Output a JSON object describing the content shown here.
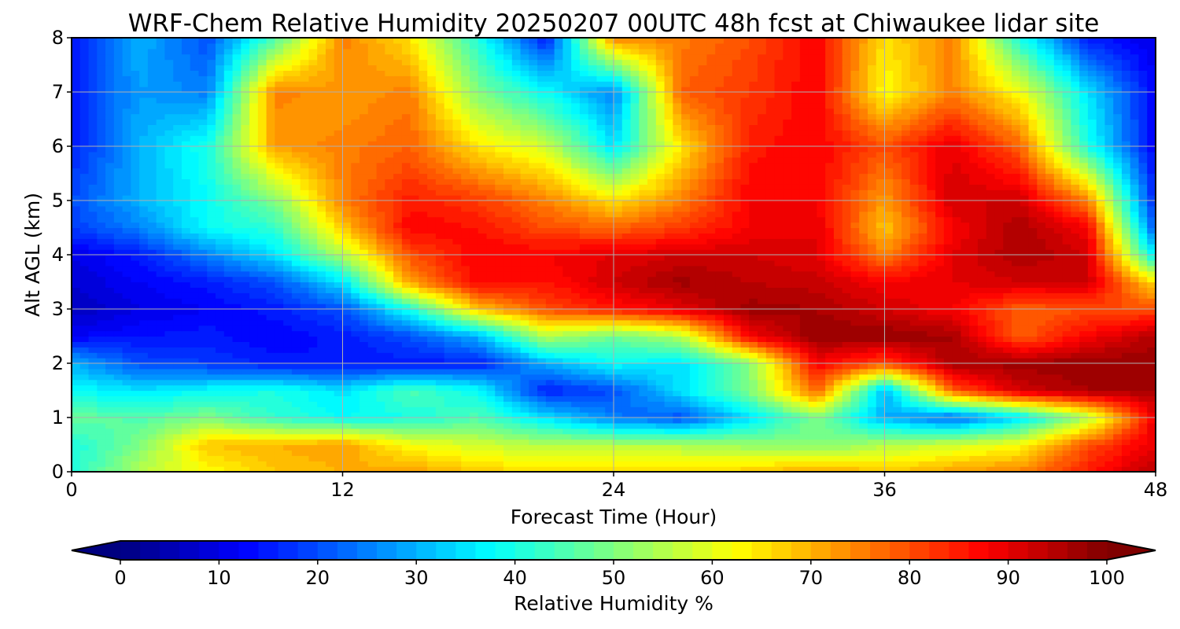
{
  "chart_data": {
    "type": "heatmap",
    "title": "WRF-Chem Relative Humidity 20250207 00UTC 48h fcst at Chiwaukee lidar site",
    "xlabel": "Forecast Time (Hour)",
    "ylabel": "Alt AGL (km)",
    "xlim": [
      0,
      48
    ],
    "ylim": [
      0,
      8
    ],
    "xticks": [
      "0",
      "12",
      "24",
      "36",
      "48"
    ],
    "yticks": [
      "0",
      "1",
      "2",
      "3",
      "4",
      "5",
      "6",
      "7",
      "8"
    ],
    "grid": true,
    "colormap": "jet",
    "colorbar": {
      "label": "Relative Humidity %",
      "range": [
        0,
        100
      ],
      "ticks": [
        "0",
        "10",
        "20",
        "30",
        "40",
        "50",
        "60",
        "70",
        "80",
        "90",
        "100"
      ],
      "extend": "both",
      "placement": "bottom"
    },
    "x": [
      0,
      3,
      6,
      9,
      12,
      15,
      18,
      21,
      24,
      27,
      30,
      33,
      36,
      39,
      42,
      45,
      48
    ],
    "y": [
      0,
      0.5,
      1,
      1.5,
      2,
      2.5,
      3,
      3.5,
      4,
      4.5,
      5,
      6,
      7,
      8
    ],
    "z": [
      [
        40,
        55,
        62,
        68,
        70,
        72,
        68,
        65,
        65,
        65,
        68,
        72,
        68,
        72,
        75,
        85,
        95
      ],
      [
        40,
        50,
        68,
        70,
        72,
        62,
        58,
        55,
        55,
        55,
        52,
        50,
        55,
        58,
        62,
        80,
        90
      ],
      [
        48,
        45,
        50,
        42,
        38,
        40,
        45,
        35,
        25,
        20,
        35,
        50,
        30,
        22,
        35,
        55,
        90
      ],
      [
        38,
        35,
        38,
        40,
        35,
        45,
        38,
        15,
        20,
        35,
        50,
        78,
        30,
        78,
        92,
        96,
        96
      ],
      [
        30,
        20,
        18,
        15,
        14,
        15,
        15,
        30,
        38,
        35,
        50,
        88,
        80,
        96,
        97,
        98,
        98
      ],
      [
        12,
        14,
        15,
        12,
        15,
        20,
        30,
        55,
        48,
        55,
        88,
        98,
        98,
        96,
        78,
        88,
        95
      ],
      [
        6,
        10,
        12,
        15,
        20,
        40,
        68,
        80,
        85,
        90,
        97,
        96,
        92,
        88,
        78,
        80,
        80
      ],
      [
        8,
        12,
        15,
        20,
        35,
        72,
        88,
        86,
        92,
        97,
        94,
        93,
        88,
        90,
        92,
        92,
        65
      ],
      [
        10,
        15,
        25,
        35,
        55,
        80,
        88,
        88,
        90,
        92,
        92,
        90,
        75,
        90,
        96,
        92,
        35
      ],
      [
        18,
        25,
        38,
        42,
        68,
        88,
        86,
        80,
        78,
        82,
        88,
        90,
        68,
        88,
        96,
        88,
        20
      ],
      [
        20,
        30,
        38,
        50,
        75,
        85,
        82,
        75,
        65,
        75,
        88,
        88,
        72,
        92,
        92,
        75,
        15
      ],
      [
        15,
        30,
        40,
        72,
        75,
        78,
        65,
        58,
        35,
        65,
        85,
        88,
        80,
        90,
        78,
        40,
        12
      ],
      [
        15,
        28,
        25,
        75,
        72,
        75,
        50,
        38,
        25,
        78,
        82,
        88,
        62,
        75,
        62,
        35,
        12
      ],
      [
        15,
        30,
        20,
        45,
        75,
        65,
        40,
        15,
        75,
        75,
        80,
        88,
        65,
        75,
        40,
        15,
        10
      ]
    ]
  }
}
